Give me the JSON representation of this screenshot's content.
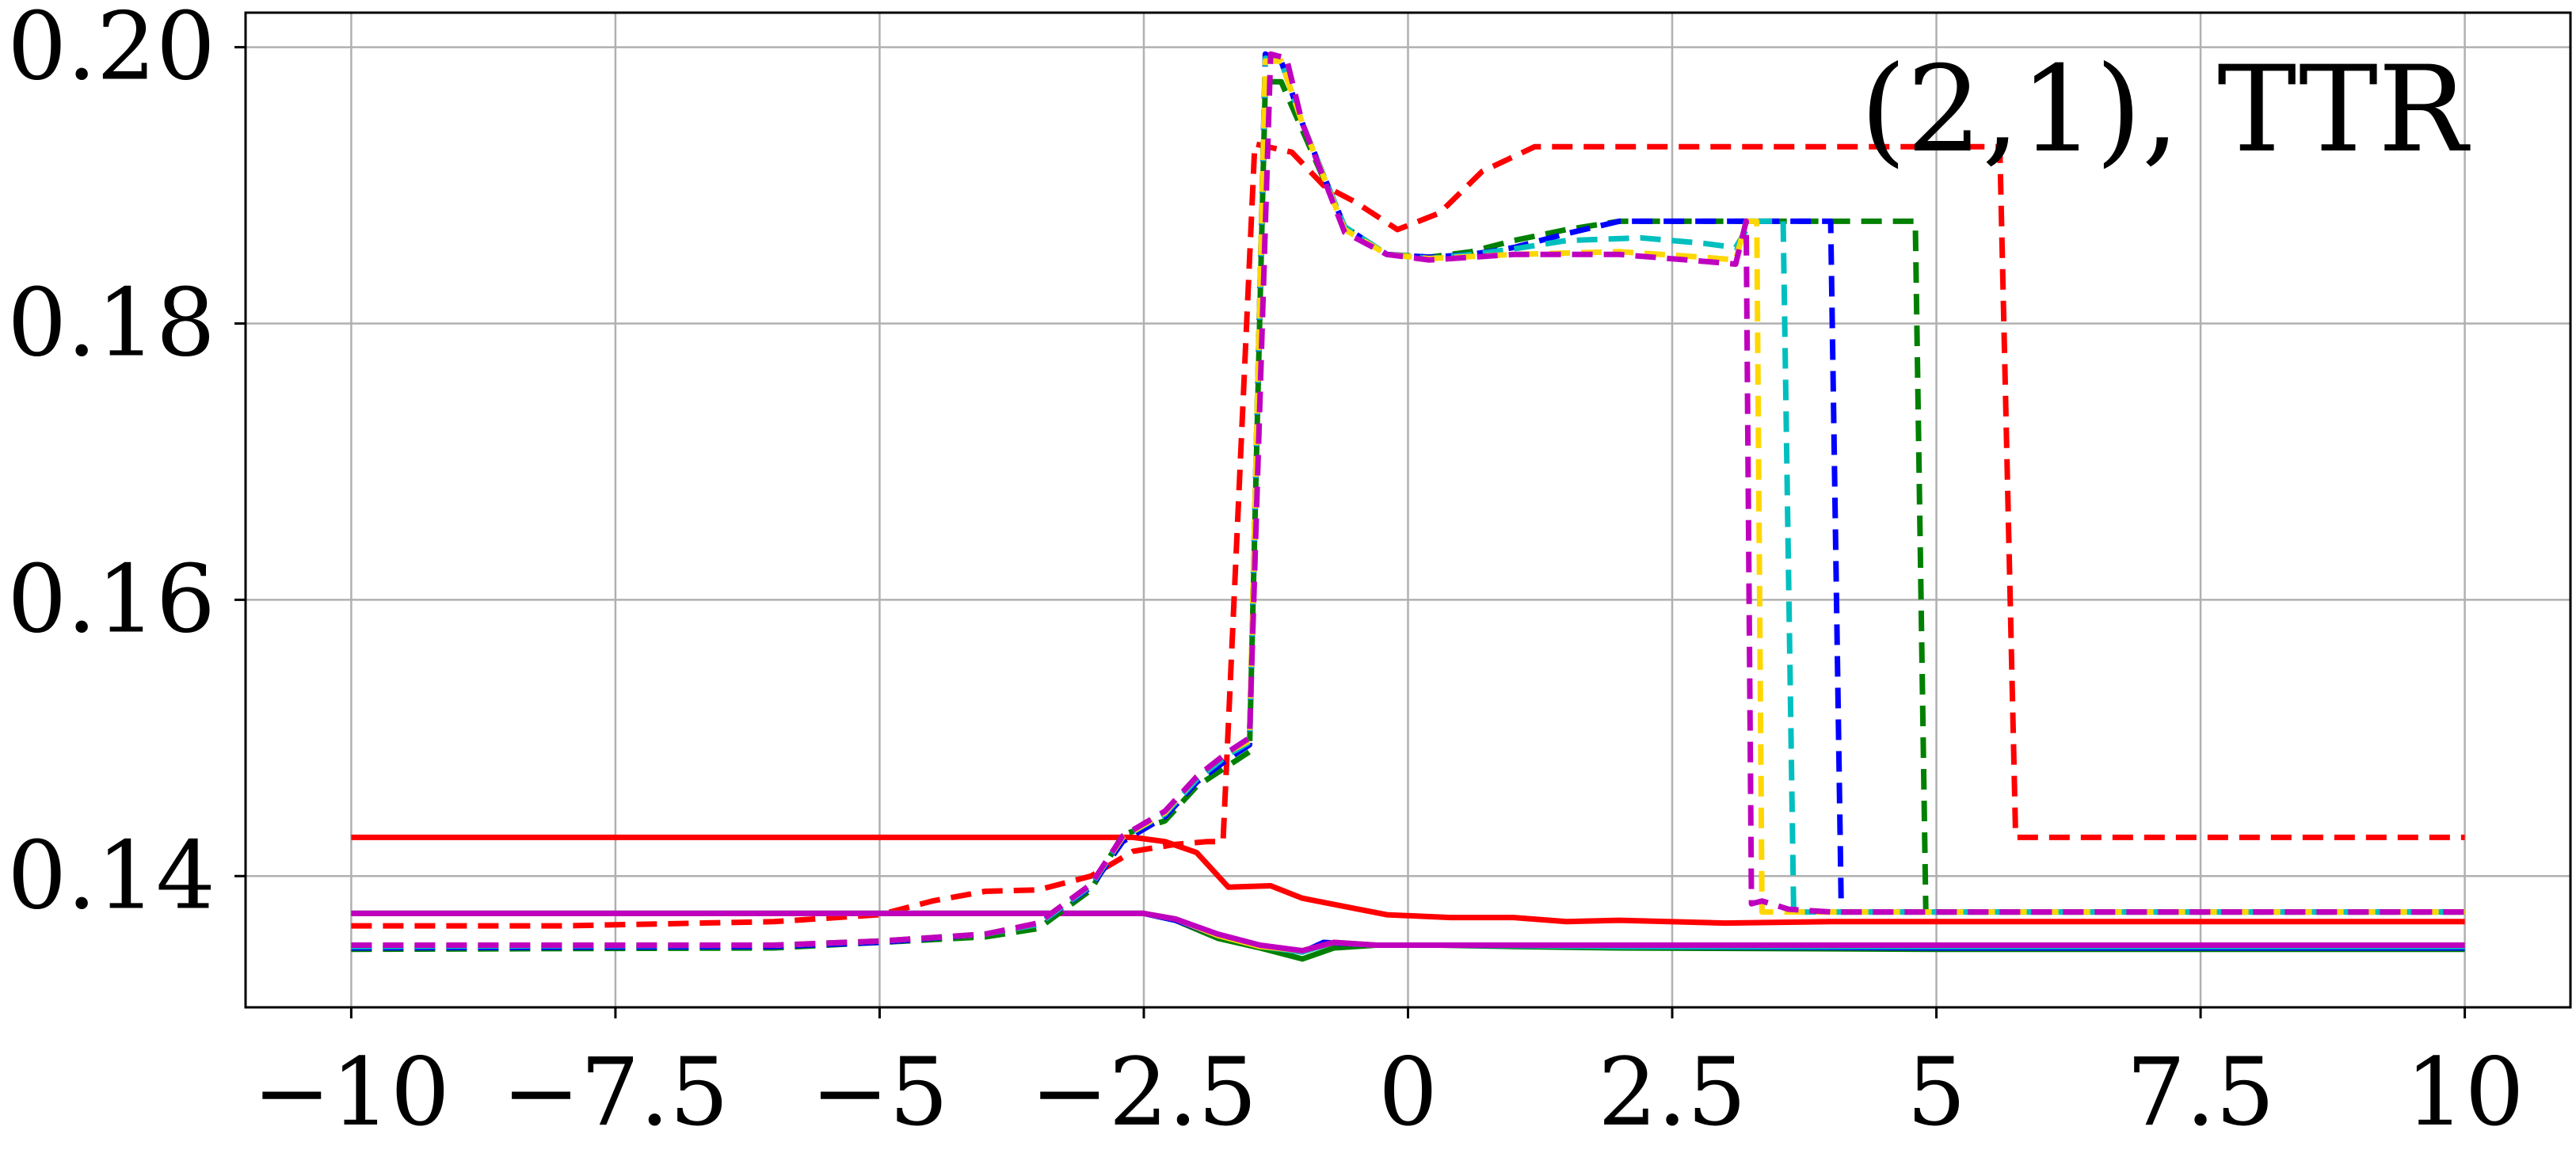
{
  "chart_data": {
    "type": "line",
    "annotation": "(2,1), TTR",
    "xlim": [
      -11.0,
      11.0
    ],
    "ylim": [
      0.1305,
      0.2025
    ],
    "grid": true,
    "x_ticks": [
      -10,
      -7.5,
      -5,
      -2.5,
      0,
      2.5,
      5,
      7.5,
      10
    ],
    "x_tick_labels": [
      "−10",
      "−7.5",
      "−5",
      "−2.5",
      "0",
      "2.5",
      "5",
      "7.5",
      "10"
    ],
    "y_ticks": [
      0.14,
      0.16,
      0.18,
      0.2
    ],
    "y_tick_labels": [
      "0.14",
      "0.16",
      "0.18",
      "0.20"
    ],
    "series": [
      {
        "color": "#ff0000",
        "style": "solid",
        "points": [
          [
            -10,
            0.1428
          ],
          [
            -2.6,
            0.1428
          ],
          [
            -2.3,
            0.1425
          ],
          [
            -2.0,
            0.1417
          ],
          [
            -1.7,
            0.1392
          ],
          [
            -1.3,
            0.1393
          ],
          [
            -1.0,
            0.1384
          ],
          [
            -0.6,
            0.1378
          ],
          [
            -0.2,
            0.1372
          ],
          [
            0.4,
            0.137
          ],
          [
            1.0,
            0.137
          ],
          [
            1.5,
            0.1367
          ],
          [
            2.0,
            0.1368
          ],
          [
            3.0,
            0.1366
          ],
          [
            4.0,
            0.1367
          ],
          [
            5.0,
            0.1367
          ],
          [
            10,
            0.1367
          ]
        ]
      },
      {
        "color": "#ff0000",
        "style": "dashed",
        "points": [
          [
            -10,
            0.1364
          ],
          [
            -8.0,
            0.1364
          ],
          [
            -6.0,
            0.1367
          ],
          [
            -5.0,
            0.1372
          ],
          [
            -4.5,
            0.1382
          ],
          [
            -4.0,
            0.1389
          ],
          [
            -3.5,
            0.139
          ],
          [
            -3.0,
            0.14
          ],
          [
            -2.6,
            0.1418
          ],
          [
            -2.2,
            0.1423
          ],
          [
            -1.9,
            0.1425
          ],
          [
            -1.75,
            0.1425
          ],
          [
            -1.45,
            0.193
          ],
          [
            -1.1,
            0.1924
          ],
          [
            -0.8,
            0.19
          ],
          [
            -0.5,
            0.1888
          ],
          [
            -0.1,
            0.1868
          ],
          [
            0.3,
            0.188
          ],
          [
            0.7,
            0.191
          ],
          [
            1.2,
            0.1928
          ],
          [
            5.6,
            0.1928
          ],
          [
            5.75,
            0.1428
          ],
          [
            10,
            0.1428
          ]
        ]
      },
      {
        "color": "#008000",
        "style": "solid",
        "points": [
          [
            -10,
            0.1373
          ],
          [
            -2.5,
            0.1373
          ],
          [
            -2.2,
            0.1368
          ],
          [
            -1.8,
            0.1355
          ],
          [
            -1.4,
            0.1348
          ],
          [
            -1.0,
            0.134
          ],
          [
            -0.7,
            0.1348
          ],
          [
            -0.3,
            0.135
          ],
          [
            0.3,
            0.135
          ],
          [
            1.0,
            0.1349
          ],
          [
            2.0,
            0.1348
          ],
          [
            5.0,
            0.1347
          ],
          [
            10,
            0.1347
          ]
        ]
      },
      {
        "color": "#0000ff",
        "style": "solid",
        "points": [
          [
            -10,
            0.1373
          ],
          [
            -2.5,
            0.1373
          ],
          [
            -2.2,
            0.1368
          ],
          [
            -1.8,
            0.1357
          ],
          [
            -1.4,
            0.1349
          ],
          [
            -1.0,
            0.1345
          ],
          [
            -0.8,
            0.1352
          ],
          [
            -0.3,
            0.135
          ],
          [
            0.5,
            0.135
          ],
          [
            2.0,
            0.1349
          ],
          [
            5.0,
            0.1348
          ],
          [
            10,
            0.1348
          ]
        ]
      },
      {
        "color": "#00bfbf",
        "style": "solid",
        "points": [
          [
            -10,
            0.1373
          ],
          [
            -2.5,
            0.1373
          ],
          [
            -2.2,
            0.1369
          ],
          [
            -1.8,
            0.1357
          ],
          [
            -1.4,
            0.1349
          ],
          [
            -1.0,
            0.1345
          ],
          [
            -0.7,
            0.1352
          ],
          [
            -0.3,
            0.135
          ],
          [
            0.5,
            0.135
          ],
          [
            2.0,
            0.1349
          ],
          [
            10,
            0.1349
          ]
        ]
      },
      {
        "color": "#ffd700",
        "style": "solid",
        "points": [
          [
            -10,
            0.1373
          ],
          [
            -2.5,
            0.1373
          ],
          [
            -2.2,
            0.1369
          ],
          [
            -1.8,
            0.1357
          ],
          [
            -1.4,
            0.1349
          ],
          [
            -1.0,
            0.1346
          ],
          [
            -0.7,
            0.1352
          ],
          [
            -0.3,
            0.135
          ],
          [
            2.0,
            0.135
          ],
          [
            10,
            0.135
          ]
        ]
      },
      {
        "color": "#bf00bf",
        "style": "solid",
        "points": [
          [
            -10,
            0.1373
          ],
          [
            -2.5,
            0.1373
          ],
          [
            -2.2,
            0.1369
          ],
          [
            -1.8,
            0.1358
          ],
          [
            -1.4,
            0.135
          ],
          [
            -1.0,
            0.1346
          ],
          [
            -0.7,
            0.1352
          ],
          [
            -0.3,
            0.135
          ],
          [
            2.0,
            0.135
          ],
          [
            10,
            0.135
          ]
        ]
      },
      {
        "color": "#008000",
        "style": "dashed",
        "points": [
          [
            -10,
            0.1347
          ],
          [
            -6.0,
            0.1348
          ],
          [
            -5.0,
            0.1352
          ],
          [
            -4.0,
            0.1356
          ],
          [
            -3.5,
            0.1362
          ],
          [
            -3.0,
            0.139
          ],
          [
            -2.7,
            0.143
          ],
          [
            -2.3,
            0.144
          ],
          [
            -2.0,
            0.1465
          ],
          [
            -1.7,
            0.148
          ],
          [
            -1.5,
            0.149
          ],
          [
            -1.35,
            0.1975
          ],
          [
            -1.2,
            0.1975
          ],
          [
            -1.0,
            0.194
          ],
          [
            -0.6,
            0.187
          ],
          [
            -0.2,
            0.185
          ],
          [
            0.2,
            0.1848
          ],
          [
            0.6,
            0.1852
          ],
          [
            1.0,
            0.186
          ],
          [
            1.5,
            0.1868
          ],
          [
            2.0,
            0.1874
          ],
          [
            4.8,
            0.1874
          ],
          [
            4.9,
            0.1374
          ],
          [
            10,
            0.1374
          ]
        ]
      },
      {
        "color": "#0000ff",
        "style": "dashed",
        "points": [
          [
            -10,
            0.1348
          ],
          [
            -6.0,
            0.1349
          ],
          [
            -5.0,
            0.1352
          ],
          [
            -4.0,
            0.1358
          ],
          [
            -3.5,
            0.1365
          ],
          [
            -3.0,
            0.1392
          ],
          [
            -2.7,
            0.1425
          ],
          [
            -2.3,
            0.1443
          ],
          [
            -2.0,
            0.1468
          ],
          [
            -1.7,
            0.1485
          ],
          [
            -1.5,
            0.1495
          ],
          [
            -1.35,
            0.1995
          ],
          [
            -1.2,
            0.199
          ],
          [
            -1.0,
            0.1945
          ],
          [
            -0.6,
            0.187
          ],
          [
            -0.2,
            0.185
          ],
          [
            0.2,
            0.1848
          ],
          [
            0.6,
            0.185
          ],
          [
            1.0,
            0.1855
          ],
          [
            1.5,
            0.1865
          ],
          [
            2.0,
            0.1874
          ],
          [
            4.0,
            0.1874
          ],
          [
            4.1,
            0.1374
          ],
          [
            10,
            0.1374
          ]
        ]
      },
      {
        "color": "#00bfbf",
        "style": "dashed",
        "points": [
          [
            -10,
            0.1349
          ],
          [
            -6.0,
            0.135
          ],
          [
            -5.0,
            0.1353
          ],
          [
            -4.0,
            0.1358
          ],
          [
            -3.5,
            0.1365
          ],
          [
            -3.0,
            0.1393
          ],
          [
            -2.7,
            0.1428
          ],
          [
            -2.3,
            0.1445
          ],
          [
            -2.0,
            0.147
          ],
          [
            -1.7,
            0.1488
          ],
          [
            -1.5,
            0.1497
          ],
          [
            -1.35,
            0.1992
          ],
          [
            -1.2,
            0.199
          ],
          [
            -1.0,
            0.1945
          ],
          [
            -0.6,
            0.187
          ],
          [
            -0.2,
            0.185
          ],
          [
            0.2,
            0.1847
          ],
          [
            0.6,
            0.185
          ],
          [
            1.0,
            0.1854
          ],
          [
            1.5,
            0.186
          ],
          [
            2.2,
            0.1862
          ],
          [
            2.8,
            0.1858
          ],
          [
            3.1,
            0.1855
          ],
          [
            3.25,
            0.1874
          ],
          [
            3.55,
            0.1874
          ],
          [
            3.65,
            0.1374
          ],
          [
            10,
            0.1374
          ]
        ]
      },
      {
        "color": "#ffd700",
        "style": "dashed",
        "points": [
          [
            -10,
            0.135
          ],
          [
            -6.0,
            0.135
          ],
          [
            -5.0,
            0.1353
          ],
          [
            -4.0,
            0.1358
          ],
          [
            -3.5,
            0.1366
          ],
          [
            -3.0,
            0.1394
          ],
          [
            -2.7,
            0.1428
          ],
          [
            -2.3,
            0.1446
          ],
          [
            -2.0,
            0.1472
          ],
          [
            -1.7,
            0.149
          ],
          [
            -1.5,
            0.1498
          ],
          [
            -1.35,
            0.199
          ],
          [
            -1.2,
            0.199
          ],
          [
            -1.0,
            0.1945
          ],
          [
            -0.6,
            0.1868
          ],
          [
            -0.2,
            0.185
          ],
          [
            0.2,
            0.1847
          ],
          [
            1.0,
            0.185
          ],
          [
            2.0,
            0.1852
          ],
          [
            2.8,
            0.1848
          ],
          [
            3.1,
            0.1846
          ],
          [
            3.2,
            0.1874
          ],
          [
            3.3,
            0.1874
          ],
          [
            3.35,
            0.1374
          ],
          [
            10,
            0.1374
          ]
        ]
      },
      {
        "color": "#bf00bf",
        "style": "dashed",
        "points": [
          [
            -10,
            0.135
          ],
          [
            -6.0,
            0.135
          ],
          [
            -5.0,
            0.1353
          ],
          [
            -4.0,
            0.1358
          ],
          [
            -3.5,
            0.1366
          ],
          [
            -3.0,
            0.1394
          ],
          [
            -2.7,
            0.1429
          ],
          [
            -2.3,
            0.1447
          ],
          [
            -2.0,
            0.1472
          ],
          [
            -1.7,
            0.149
          ],
          [
            -1.5,
            0.15
          ],
          [
            -1.3,
            0.1995
          ],
          [
            -1.15,
            0.1992
          ],
          [
            -1.0,
            0.1945
          ],
          [
            -0.6,
            0.1866
          ],
          [
            -0.2,
            0.185
          ],
          [
            0.2,
            0.1846
          ],
          [
            1.0,
            0.185
          ],
          [
            2.0,
            0.185
          ],
          [
            2.8,
            0.1845
          ],
          [
            3.1,
            0.1843
          ],
          [
            3.2,
            0.1874
          ],
          [
            3.25,
            0.138
          ],
          [
            3.35,
            0.1382
          ],
          [
            3.6,
            0.1376
          ],
          [
            4.0,
            0.1374
          ],
          [
            10,
            0.1374
          ]
        ]
      }
    ]
  }
}
